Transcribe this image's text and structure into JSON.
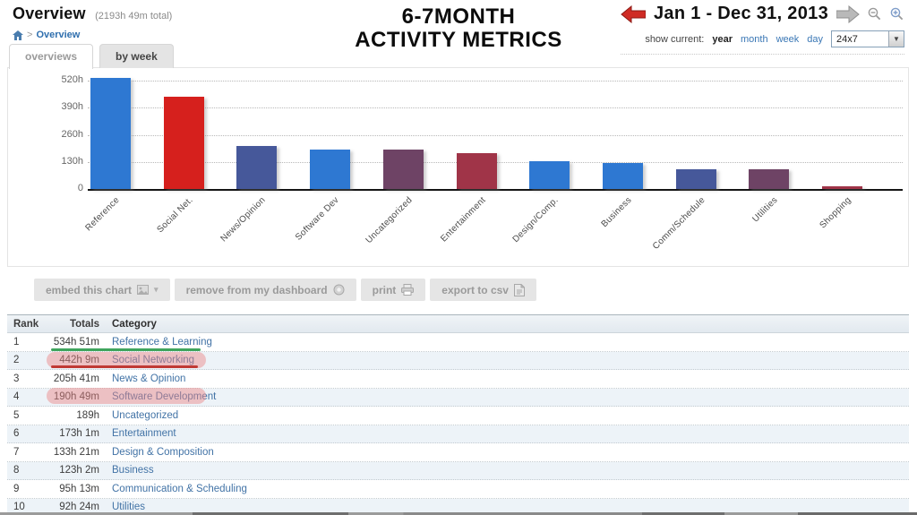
{
  "header": {
    "title": "Overview",
    "subtitle": "(2193h 49m total)",
    "breadcrumb": {
      "separator": ">",
      "current": "Overview"
    },
    "annotation_title_line1": "6-7MONTH",
    "annotation_title_line2": "ACTIVITY METRICS",
    "date_range": "Jan 1 - Dec 31, 2013",
    "prev_arrow_color": "#cf2b24",
    "next_arrow_color": "#b9b9b9",
    "show_current_label": "show current:",
    "period_options": [
      {
        "label": "year",
        "active": true
      },
      {
        "label": "month",
        "active": false
      },
      {
        "label": "week",
        "active": false
      },
      {
        "label": "day",
        "active": false
      }
    ],
    "filter_select_value": "24x7"
  },
  "tabs": [
    {
      "label": "overviews",
      "active": true
    },
    {
      "label": "by week",
      "active": false
    }
  ],
  "chart_data": {
    "type": "bar",
    "title": "6-7MONTH ACTIVITY METRICS",
    "xlabel": "",
    "ylabel": "hours",
    "ylim": [
      0,
      560
    ],
    "ytick_values": [
      520,
      390,
      260,
      130,
      0
    ],
    "ytick_labels": [
      "520h",
      "390h",
      "260h",
      "130h",
      "0"
    ],
    "grid": "horizontal-dotted",
    "legend": "none",
    "categories": [
      "Reference",
      "Social Net.",
      "News/Opinion",
      "Software Dev",
      "Uncategorized",
      "Entertainment",
      "Design/Comp.",
      "Business",
      "Comm/Schedule",
      "Utilities",
      "Shopping"
    ],
    "values_hours": [
      534.85,
      442.15,
      205.68,
      190.82,
      189.0,
      173.02,
      133.35,
      123.03,
      95.22,
      92.4,
      14.3
    ],
    "value_labels": [
      "534h 51m",
      "442h 9m",
      "205h 41m",
      "190h 49m",
      "189h",
      "173h 1m",
      "133h 21m",
      "123h 2m",
      "95h 13m",
      "92h 24m",
      "~14h (estimated from bar)"
    ],
    "bar_colors": [
      "#2e78d2",
      "#d6201d",
      "#46589a",
      "#2e78d2",
      "#6e4365",
      "#a03448",
      "#2e78d2",
      "#2e78d2",
      "#46589a",
      "#6e4365",
      "#a03448"
    ]
  },
  "toolbar": {
    "buttons": [
      {
        "label": "embed this chart",
        "icon": "embed-chart-icon"
      },
      {
        "label": "remove from my dashboard",
        "icon": "remove-icon"
      },
      {
        "label": "print",
        "icon": "printer-icon"
      },
      {
        "label": "export to csv",
        "icon": "export-csv-icon"
      }
    ]
  },
  "table": {
    "columns": [
      "Rank",
      "Totals",
      "Category"
    ],
    "rows": [
      {
        "rank": "1",
        "total": "534h 51m",
        "category": "Reference & Learning"
      },
      {
        "rank": "2",
        "total": "442h 9m",
        "category": "Social Networking"
      },
      {
        "rank": "3",
        "total": "205h 41m",
        "category": "News & Opinion"
      },
      {
        "rank": "4",
        "total": "190h 49m",
        "category": "Software Development"
      },
      {
        "rank": "5",
        "total": "189h",
        "category": "Uncategorized"
      },
      {
        "rank": "6",
        "total": "173h 1m",
        "category": "Entertainment"
      },
      {
        "rank": "7",
        "total": "133h 21m",
        "category": "Design & Composition"
      },
      {
        "rank": "8",
        "total": "123h 2m",
        "category": "Business"
      },
      {
        "rank": "9",
        "total": "95h 13m",
        "category": "Communication & Scheduling"
      },
      {
        "rank": "10",
        "total": "92h 24m",
        "category": "Utilities"
      }
    ]
  },
  "annotations": {
    "highlight_color": "rgba(236,130,130,0.45)",
    "underline_green": "#3fa45c",
    "underline_red": "#c03a35",
    "green_underlined_row": "Reference & Learning",
    "highlighted_rows": [
      "Social Networking",
      "Software Development"
    ]
  }
}
